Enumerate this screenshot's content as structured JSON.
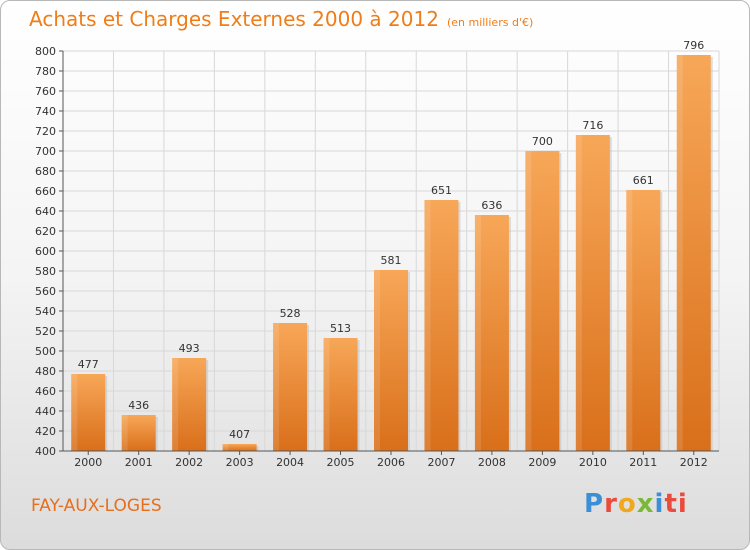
{
  "chart_data": {
    "type": "bar",
    "title": "Achats et Charges Externes 2000 à 2012",
    "subtitle": "(en milliers d'€)",
    "categories": [
      "2000",
      "2001",
      "2002",
      "2003",
      "2004",
      "2005",
      "2006",
      "2007",
      "2008",
      "2009",
      "2010",
      "2011",
      "2012"
    ],
    "values": [
      477,
      436,
      493,
      407,
      528,
      513,
      581,
      651,
      636,
      700,
      716,
      661,
      796
    ],
    "ylim": [
      400,
      800
    ],
    "ytick_step": 20,
    "grid": true,
    "legend": "none",
    "colors": {
      "bar_top": "#f7a758",
      "bar_bottom": "#d96f1a",
      "grid": "#d8d8d8",
      "axis": "#555555"
    }
  },
  "location": "FAY-AUX-LOGES",
  "logo_text": "Proxiti"
}
